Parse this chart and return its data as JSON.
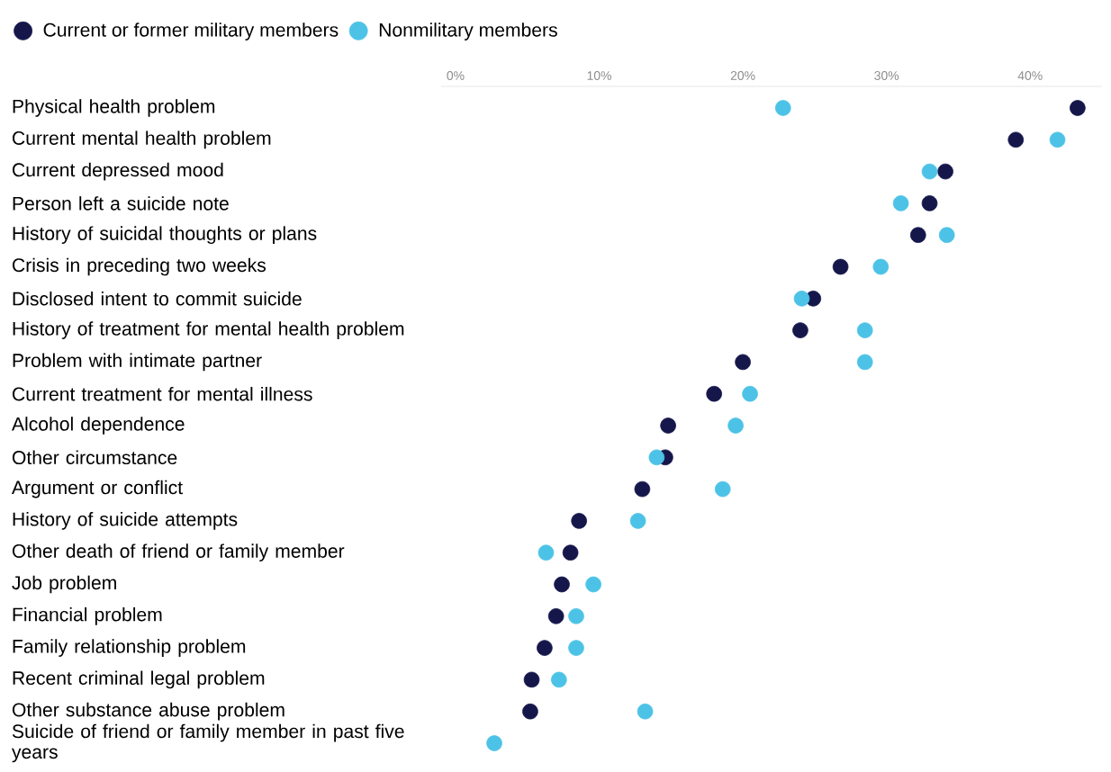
{
  "chart_data": {
    "type": "scatter",
    "orientation": "horizontal",
    "marker": "circle",
    "legend": "top left",
    "categories": [
      "Physical health problem",
      "Current mental health problem",
      "Current depressed mood",
      "Person left a suicide note",
      "History of suicidal thoughts or plans",
      "Crisis in preceding two weeks",
      "Disclosed intent to commit suicide",
      "History of treatment for mental health problem",
      "Problem with intimate partner",
      "Current treatment for mental illness",
      "Alcohol dependence",
      "Other circumstance",
      "Argument or conflict",
      "History of suicide attempts",
      "Other death of friend or family member",
      "Job problem",
      "Financial problem",
      "Family relationship problem",
      "Recent criminal legal problem",
      "Other substance abuse problem",
      "Suicide of friend or family member in past five years"
    ],
    "series": [
      {
        "name": "Current or former military members",
        "color": "#15164a",
        "values": [
          43.3,
          39.0,
          34.1,
          33.0,
          32.2,
          26.8,
          24.9,
          24.0,
          20.0,
          18.0,
          14.8,
          14.6,
          13.0,
          8.6,
          8.0,
          7.4,
          7.0,
          6.2,
          5.3,
          5.2,
          null
        ]
      },
      {
        "name": "Nonmilitary members",
        "color": "#4cc3e6",
        "values": [
          22.8,
          41.9,
          33.0,
          31.0,
          34.2,
          29.6,
          24.1,
          28.5,
          28.5,
          20.5,
          19.5,
          14.0,
          18.6,
          12.7,
          6.3,
          9.6,
          8.4,
          8.4,
          7.2,
          13.2,
          2.7
        ]
      }
    ],
    "xlim": [
      -1,
      45
    ],
    "xticks": [
      {
        "value": 0,
        "label": "0%"
      },
      {
        "value": 10,
        "label": "10%"
      },
      {
        "value": 20,
        "label": "20%"
      },
      {
        "value": 30,
        "label": "30%"
      },
      {
        "value": 40,
        "label": "40%"
      }
    ]
  }
}
